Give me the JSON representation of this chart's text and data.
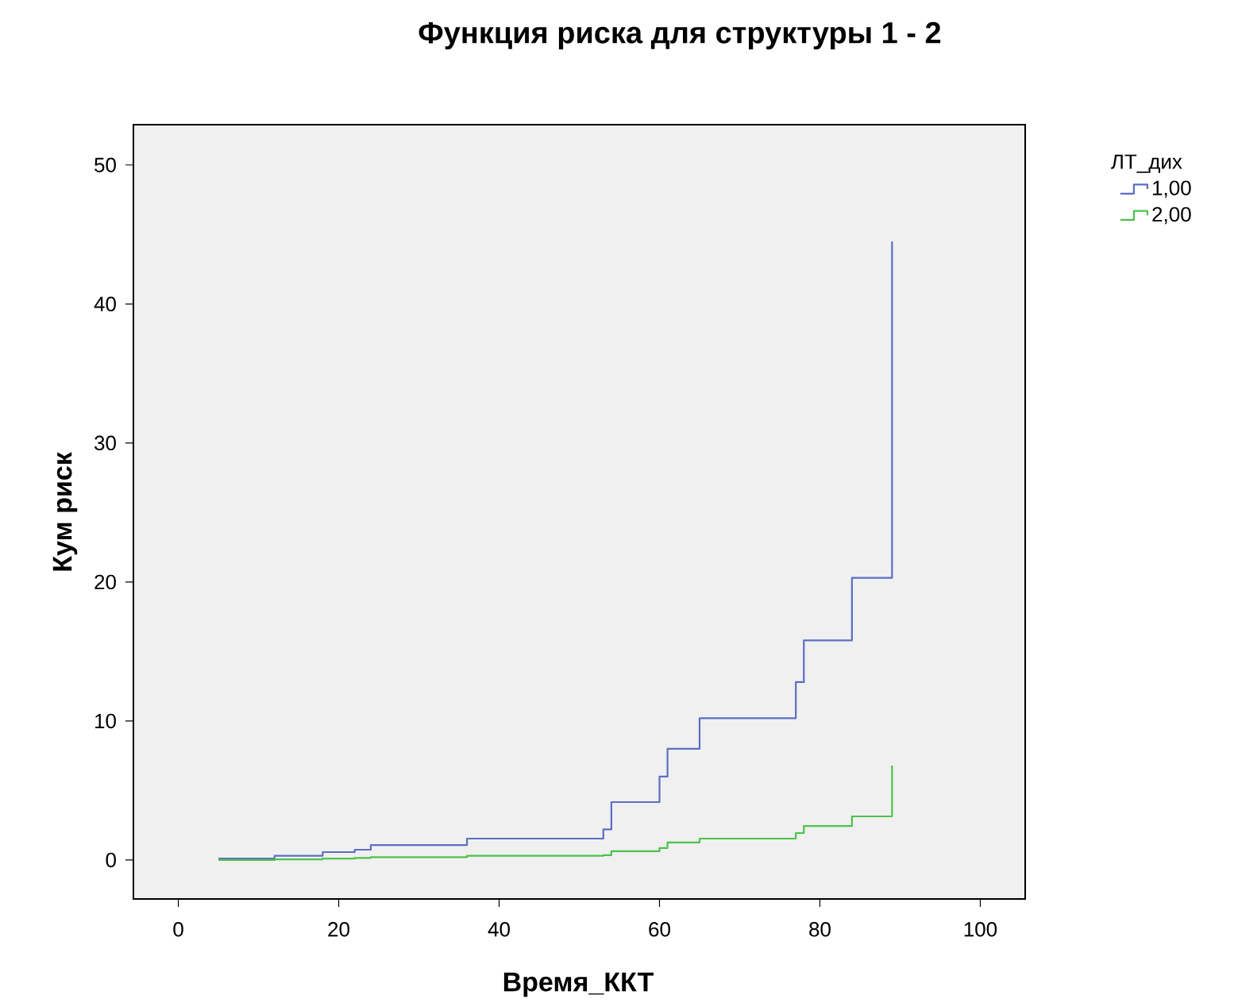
{
  "chart_data": {
    "type": "step",
    "title": "Функция риска для структуры 1 - 2",
    "xlabel": "Время_ККТ",
    "ylabel": "Кум риск",
    "legend_title": "ЛТ_дих",
    "xlim": [
      -5.6,
      105.6
    ],
    "ylim": [
      -2.8,
      52.9
    ],
    "xticks": [
      0,
      20,
      40,
      60,
      80,
      100
    ],
    "yticks": [
      0,
      10,
      20,
      30,
      40,
      50
    ],
    "grid": false,
    "legend": "top right",
    "line_style": "solid",
    "marker": "none",
    "series": [
      {
        "name": "1,00",
        "color": "#5b6fc2",
        "x": [
          5,
          12,
          18,
          22,
          24,
          36,
          53,
          54,
          60,
          61,
          65,
          77,
          78,
          84,
          89
        ],
        "values": [
          0.1,
          0.3,
          0.57,
          0.74,
          1.08,
          1.54,
          2.2,
          4.17,
          6.0,
          8.0,
          10.2,
          12.8,
          15.8,
          20.3,
          44.5
        ]
      },
      {
        "name": "2,00",
        "color": "#4cc24c",
        "x": [
          5,
          12,
          18,
          22,
          24,
          36,
          53,
          54,
          60,
          61,
          65,
          77,
          78,
          84,
          89
        ],
        "values": [
          0,
          0.05,
          0.1,
          0.15,
          0.2,
          0.3,
          0.35,
          0.63,
          0.86,
          1.26,
          1.54,
          1.94,
          2.45,
          3.14,
          6.8
        ]
      }
    ]
  }
}
